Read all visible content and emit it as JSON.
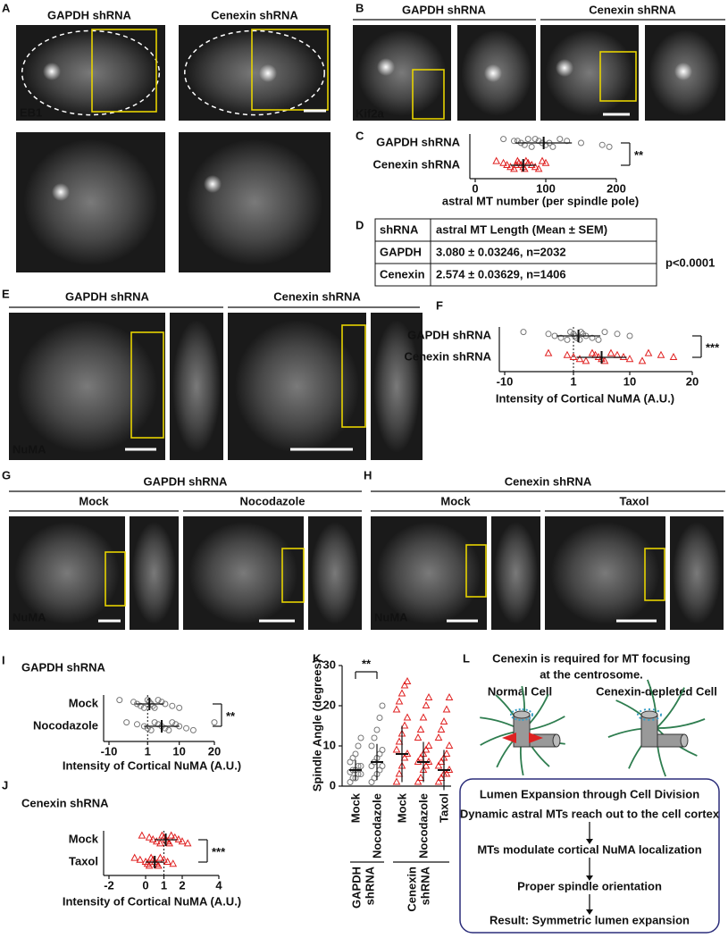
{
  "panel_a": {
    "letter": "A",
    "headers": [
      "GAPDH shRNA",
      "Cenexin shRNA"
    ],
    "stain": "EB1"
  },
  "panel_b": {
    "letter": "B",
    "headers": [
      "GAPDH shRNA",
      "Cenexin shRNA"
    ],
    "stain": "Kif2a"
  },
  "panel_c": {
    "letter": "C",
    "plot": {
      "type": "strip",
      "xlim": [
        0,
        200
      ],
      "xticks": [
        0,
        100,
        200
      ],
      "x_label": "astral MT number (per spindle pole)",
      "significance": "**",
      "series": [
        {
          "name": "GAPDH shRNA",
          "color": "#777777",
          "marker": "circle",
          "mean": 97,
          "sd": 40,
          "values": [
            40,
            55,
            65,
            70,
            80,
            85,
            90,
            95,
            100,
            110,
            120,
            130,
            150,
            180,
            190,
            75,
            60,
            105
          ]
        },
        {
          "name": "Cenexin shRNA",
          "color": "#e02020",
          "marker": "triangle",
          "mean": 68,
          "sd": 18,
          "values": [
            30,
            40,
            45,
            50,
            55,
            60,
            62,
            65,
            68,
            70,
            72,
            75,
            80,
            85,
            90,
            95,
            100,
            58
          ]
        }
      ]
    }
  },
  "panel_d": {
    "letter": "D",
    "table": {
      "header": [
        "shRNA",
        "astral MT Length (Mean ± SEM)"
      ],
      "rows": [
        [
          "GAPDH",
          "3.080 ± 0.03246, n=2032"
        ],
        [
          "Cenexin",
          "2.574 ± 0.03629, n=1406"
        ]
      ]
    },
    "p_value": "p<0.0001"
  },
  "panel_e": {
    "letter": "E",
    "headers": [
      "GAPDH shRNA",
      "Cenexin shRNA"
    ],
    "stain": "NuMA"
  },
  "panel_f": {
    "letter": "F",
    "plot": {
      "type": "strip",
      "xlim": [
        -10,
        20
      ],
      "xticks": [
        -10,
        1,
        10,
        20
      ],
      "reference_line": 1,
      "x_label": "Intensity of Cortical NuMA (A.U.)",
      "significance": "***",
      "series": [
        {
          "name": "GAPDH shRNA",
          "color": "#777777",
          "marker": "circle",
          "mean": 1.8,
          "sd": 3.5,
          "values": [
            -7,
            -3,
            -2,
            -1,
            0,
            0.5,
            1,
            1.2,
            1.5,
            2,
            2.2,
            2.5,
            3,
            4,
            5,
            6,
            8,
            10
          ]
        },
        {
          "name": "Cenexin shRNA",
          "color": "#e02020",
          "marker": "triangle",
          "mean": 5.5,
          "sd": 4,
          "values": [
            -3,
            0,
            1,
            2,
            3,
            4,
            4.5,
            5,
            5.5,
            6,
            7,
            8,
            9,
            10,
            12,
            13,
            15,
            17
          ]
        }
      ]
    }
  },
  "panel_g": {
    "letter": "G",
    "header": "GAPDH shRNA",
    "conditions": [
      "Mock",
      "Nocodazole"
    ],
    "stain": "NuMA"
  },
  "panel_h": {
    "letter": "H",
    "header": "Cenexin shRNA",
    "conditions": [
      "Mock",
      "Taxol"
    ],
    "stain": "NuMA"
  },
  "panel_i": {
    "letter": "I",
    "title": "GAPDH shRNA",
    "plot": {
      "type": "strip",
      "xlim": [
        -10,
        20
      ],
      "xticks": [
        -10,
        1,
        10,
        20
      ],
      "reference_line": 1,
      "x_label": "Intensity of Cortical NuMA (A.U.)",
      "significance": "**",
      "series": [
        {
          "name": "Mock",
          "color": "#777777",
          "marker": "circle",
          "mean": 1.5,
          "sd": 4,
          "values": [
            -7,
            -3,
            -2,
            -1,
            0,
            1,
            1.5,
            2,
            2.5,
            3,
            4,
            5,
            6,
            8,
            10
          ]
        },
        {
          "name": "Nocodazole",
          "color": "#777777",
          "marker": "circle",
          "mean": 5,
          "sd": 5,
          "values": [
            -5,
            -2,
            0,
            1,
            2,
            3,
            4,
            5,
            6,
            7,
            8,
            9,
            10,
            12,
            14,
            20
          ]
        }
      ]
    }
  },
  "panel_j": {
    "letter": "J",
    "title": "Cenexin shRNA",
    "plot": {
      "type": "strip",
      "xlim": [
        -2,
        4
      ],
      "xticks": [
        -2,
        0,
        1,
        2,
        4
      ],
      "reference_line": 1,
      "x_label": "Intensity of Cortical NuMA (A.U.)",
      "significance": "***",
      "series": [
        {
          "name": "Mock",
          "color": "#e02020",
          "marker": "triangle",
          "mean": 1.1,
          "sd": 0.6,
          "values": [
            -0.2,
            0.2,
            0.4,
            0.6,
            0.8,
            0.9,
            1,
            1.1,
            1.2,
            1.3,
            1.4,
            1.6,
            1.8,
            2,
            2.3
          ]
        },
        {
          "name": "Taxol",
          "color": "#e02020",
          "marker": "triangle",
          "mean": 0.5,
          "sd": 0.5,
          "values": [
            -0.6,
            -0.3,
            0,
            0.1,
            0.2,
            0.3,
            0.4,
            0.5,
            0.6,
            0.7,
            0.8,
            1,
            1.2,
            1.5
          ]
        }
      ]
    }
  },
  "panel_k": {
    "letter": "K",
    "plot": {
      "type": "strip-vertical",
      "y_label": "Spindle Angle (degrees)",
      "ylim": [
        0,
        30
      ],
      "yticks": [
        0,
        10,
        20,
        30
      ],
      "significance": "**",
      "group_labels": [
        [
          "GAPDH",
          "shRNA"
        ],
        [
          "Cenexin",
          "shRNA"
        ]
      ],
      "series": [
        {
          "name": "Mock",
          "color": "#777777",
          "marker": "circle",
          "mean": 4,
          "sd": 2.5,
          "values": [
            1,
            2,
            2,
            3,
            3,
            3.5,
            4,
            4,
            5,
            5,
            6,
            7,
            8,
            10,
            12
          ]
        },
        {
          "name": "Nocodazole",
          "color": "#777777",
          "marker": "circle",
          "mean": 6,
          "sd": 4.5,
          "values": [
            1,
            2,
            3,
            4,
            5,
            5,
            6,
            7,
            8,
            9,
            10,
            12,
            14,
            17,
            20
          ]
        },
        {
          "name": "Mock",
          "color": "#e02020",
          "marker": "triangle",
          "mean": 8,
          "sd": 7,
          "values": [
            1,
            3,
            5,
            7,
            8,
            9,
            11,
            13,
            15,
            17,
            19,
            21,
            23,
            25,
            26
          ]
        },
        {
          "name": "Nocodazole",
          "color": "#e02020",
          "marker": "triangle",
          "mean": 6,
          "sd": 5,
          "values": [
            1,
            2,
            4,
            5,
            6,
            6,
            7,
            8,
            9,
            10,
            12,
            14,
            17,
            20,
            22
          ]
        },
        {
          "name": "Taxol",
          "color": "#e02020",
          "marker": "triangle",
          "mean": 4,
          "sd": 5,
          "values": [
            1,
            2,
            3,
            3,
            4,
            5,
            6,
            7,
            8,
            10,
            12,
            14,
            16,
            19,
            22
          ]
        }
      ]
    }
  },
  "panel_l": {
    "letter": "L",
    "title_lines": [
      "Cenexin is required for MT focusing",
      "at the centrosome."
    ],
    "cells": [
      "Normal Cell",
      "Cenexin-depleted Cell"
    ],
    "box_title": "Lumen Expansion through Cell Division",
    "steps": [
      "Dynamic astral MTs reach out to the cell cortex",
      "MTs modulate cortical NuMA localization",
      "Proper spindle orientation",
      "Result: Symmetric lumen expansion"
    ]
  }
}
